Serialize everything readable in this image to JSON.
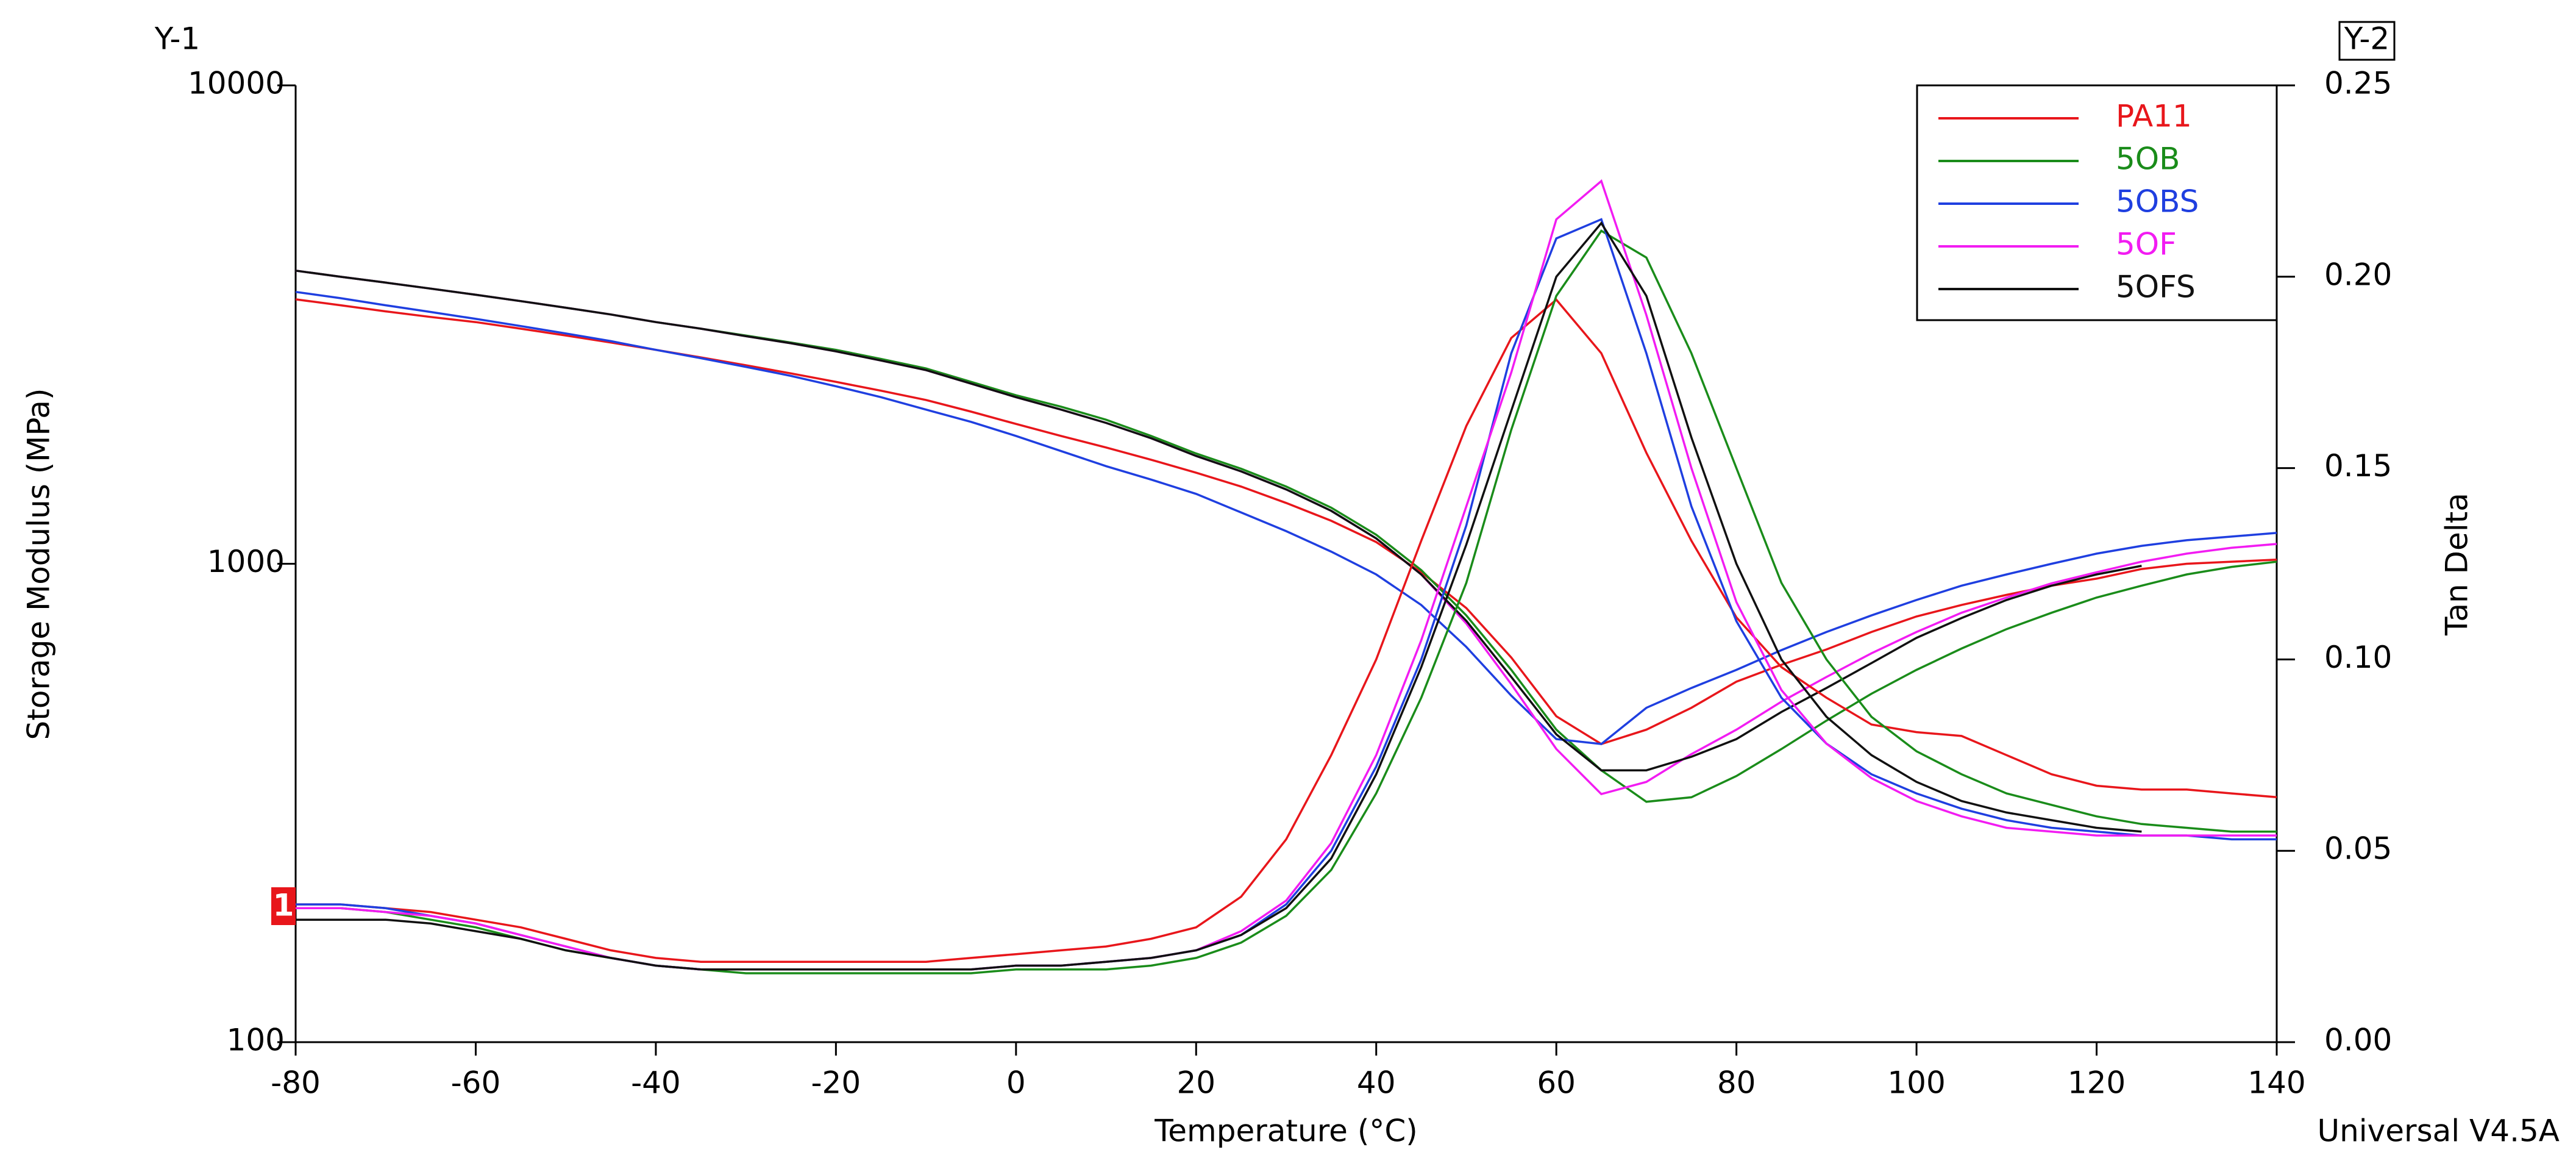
{
  "chart_data": {
    "type": "line",
    "x_label": "Temperature (°C)",
    "y_label": "Storage Modulus (MPa)",
    "y2_label": "Tan Delta",
    "y1_name": "Y-1",
    "y2_name": "Y-2",
    "marker_label": "1",
    "footer": "Universal V4.5A",
    "yscale": "log",
    "xlim": [
      -80,
      140
    ],
    "xticks": [
      -80,
      -60,
      -40,
      -20,
      0,
      20,
      40,
      60,
      80,
      100,
      120,
      140
    ],
    "ylim": [
      100,
      10000
    ],
    "yticks": [
      100,
      1000,
      10000
    ],
    "y2lim": [
      0,
      0.25
    ],
    "y2ticks": [
      {
        "value": 0,
        "label": "0.00"
      },
      0.05,
      {
        "value": 0.1,
        "label": "0.10"
      },
      0.15,
      {
        "value": 0.2,
        "label": "0.20"
      },
      0.25
    ],
    "legend": "top-right",
    "x": [
      -80,
      -75,
      -70,
      -65,
      -60,
      -55,
      -50,
      -45,
      -40,
      -35,
      -30,
      -25,
      -20,
      -15,
      -10,
      -5,
      0,
      5,
      10,
      15,
      20,
      25,
      30,
      35,
      40,
      45,
      50,
      55,
      60,
      65,
      70,
      75,
      80,
      85,
      90,
      95,
      100,
      105,
      110,
      115,
      120,
      125,
      130,
      135,
      140
    ],
    "series": [
      {
        "name": "PA11",
        "color": "#e8161b",
        "values": [
          3570,
          3470,
          3370,
          3280,
          3200,
          3100,
          3000,
          2900,
          2800,
          2700,
          2600,
          2500,
          2400,
          2300,
          2200,
          2080,
          1960,
          1850,
          1750,
          1650,
          1550,
          1450,
          1340,
          1230,
          1110,
          960,
          808,
          637,
          480,
          420,
          450,
          500,
          567,
          615,
          662,
          720,
          776,
          820,
          861,
          900,
          931,
          975,
          1000,
          1010,
          1020
        ]
      },
      {
        "name": "5OB",
        "color": "#1a8c1a",
        "values": [
          4100,
          3980,
          3870,
          3760,
          3650,
          3540,
          3430,
          3320,
          3200,
          3100,
          3000,
          2900,
          2800,
          2680,
          2560,
          2400,
          2250,
          2130,
          2000,
          1850,
          1700,
          1580,
          1450,
          1310,
          1150,
          970,
          780,
          600,
          450,
          370,
          318,
          325,
          360,
          410,
          470,
          535,
          600,
          665,
          730,
          790,
          850,
          900,
          950,
          985,
          1010
        ]
      },
      {
        "name": "5OBS",
        "color": "#1f3fe0",
        "values": [
          3700,
          3590,
          3470,
          3360,
          3250,
          3140,
          3030,
          2920,
          2800,
          2690,
          2580,
          2470,
          2350,
          2230,
          2100,
          1980,
          1850,
          1720,
          1600,
          1500,
          1400,
          1280,
          1170,
          1060,
          950,
          820,
          670,
          530,
          430,
          420,
          500,
          550,
          600,
          660,
          720,
          780,
          840,
          900,
          950,
          1000,
          1050,
          1090,
          1120,
          1140,
          1160
        ]
      },
      {
        "name": "5OF",
        "color": "#f21cf2",
        "values": [
          4100,
          3980,
          3870,
          3760,
          3650,
          3540,
          3430,
          3320,
          3200,
          3100,
          2990,
          2890,
          2780,
          2660,
          2540,
          2380,
          2230,
          2100,
          1970,
          1830,
          1680,
          1560,
          1430,
          1290,
          1130,
          950,
          750,
          560,
          410,
          330,
          350,
          400,
          450,
          515,
          580,
          650,
          720,
          790,
          850,
          910,
          960,
          1010,
          1050,
          1080,
          1100
        ]
      },
      {
        "name": "5OFS",
        "color": "#111111",
        "values": [
          4100,
          3980,
          3870,
          3760,
          3650,
          3540,
          3430,
          3320,
          3200,
          3100,
          2990,
          2890,
          2780,
          2660,
          2540,
          2380,
          2230,
          2100,
          1970,
          1830,
          1680,
          1560,
          1430,
          1290,
          1130,
          950,
          760,
          580,
          440,
          370,
          370,
          395,
          430,
          490,
          550,
          620,
          700,
          770,
          840,
          900,
          950,
          990,
          null,
          null,
          null
        ]
      },
      {
        "color": "#e8161b",
        "axis": "y2",
        "values": [
          0.036,
          0.036,
          0.035,
          0.034,
          0.032,
          0.03,
          0.027,
          0.024,
          0.022,
          0.021,
          0.021,
          0.021,
          0.021,
          0.021,
          0.021,
          0.022,
          0.023,
          0.024,
          0.025,
          0.027,
          0.03,
          0.038,
          0.053,
          0.075,
          0.1,
          0.131,
          0.161,
          0.184,
          0.194,
          0.18,
          0.154,
          0.131,
          0.111,
          0.098,
          0.09,
          0.083,
          0.081,
          0.08,
          0.075,
          0.07,
          0.067,
          0.066,
          0.066,
          0.065,
          0.064
        ]
      },
      {
        "color": "#1a8c1a",
        "axis": "y2",
        "values": [
          0.035,
          0.035,
          0.034,
          0.032,
          0.03,
          0.027,
          0.024,
          0.022,
          0.02,
          0.019,
          0.018,
          0.018,
          0.018,
          0.018,
          0.018,
          0.018,
          0.019,
          0.019,
          0.019,
          0.02,
          0.022,
          0.026,
          0.033,
          0.045,
          0.065,
          0.09,
          0.12,
          0.16,
          0.195,
          0.212,
          0.205,
          0.18,
          0.15,
          0.12,
          0.1,
          0.085,
          0.076,
          0.07,
          0.065,
          0.062,
          0.059,
          0.057,
          0.056,
          0.055,
          0.055
        ]
      },
      {
        "color": "#1f3fe0",
        "axis": "y2",
        "values": [
          0.036,
          0.036,
          0.035,
          0.033,
          0.031,
          0.028,
          0.025,
          0.022,
          0.02,
          0.019,
          0.019,
          0.019,
          0.019,
          0.019,
          0.019,
          0.019,
          0.02,
          0.02,
          0.021,
          0.022,
          0.024,
          0.028,
          0.036,
          0.05,
          0.072,
          0.1,
          0.135,
          0.18,
          0.21,
          0.215,
          0.18,
          0.14,
          0.11,
          0.09,
          0.078,
          0.07,
          0.065,
          0.061,
          0.058,
          0.056,
          0.055,
          0.054,
          0.054,
          0.053,
          0.053
        ]
      },
      {
        "color": "#f21cf2",
        "axis": "y2",
        "values": [
          0.035,
          0.035,
          0.034,
          0.033,
          0.031,
          0.028,
          0.025,
          0.022,
          0.02,
          0.019,
          0.019,
          0.019,
          0.019,
          0.019,
          0.019,
          0.019,
          0.02,
          0.02,
          0.021,
          0.022,
          0.024,
          0.029,
          0.037,
          0.052,
          0.075,
          0.105,
          0.14,
          0.175,
          0.215,
          0.225,
          0.19,
          0.15,
          0.115,
          0.092,
          0.078,
          0.069,
          0.063,
          0.059,
          0.056,
          0.055,
          0.054,
          0.054,
          0.054,
          0.054,
          0.054
        ]
      },
      {
        "color": "#111111",
        "axis": "y2",
        "values": [
          0.032,
          0.032,
          0.032,
          0.031,
          0.029,
          0.027,
          0.024,
          0.022,
          0.02,
          0.019,
          0.019,
          0.019,
          0.019,
          0.019,
          0.019,
          0.019,
          0.02,
          0.02,
          0.021,
          0.022,
          0.024,
          0.028,
          0.035,
          0.048,
          0.07,
          0.098,
          0.13,
          0.165,
          0.2,
          0.214,
          0.195,
          0.158,
          0.125,
          0.1,
          0.085,
          0.075,
          0.068,
          0.063,
          0.06,
          0.058,
          0.056,
          0.055,
          null,
          null,
          null
        ]
      }
    ]
  }
}
